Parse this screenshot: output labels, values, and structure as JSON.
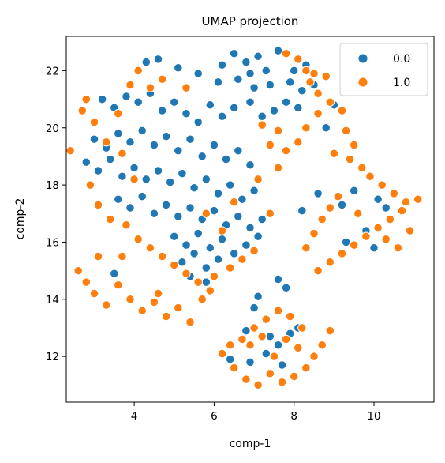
{
  "chart_data": {
    "type": "scatter",
    "title": "UMAP projection",
    "xlabel": "comp-1",
    "ylabel": "comp-2",
    "xlim": [
      2.3,
      11.5
    ],
    "ylim": [
      10.4,
      23.2
    ],
    "xticks": [
      4,
      6,
      8,
      10
    ],
    "yticks": [
      12,
      14,
      16,
      18,
      20,
      22
    ],
    "grid": false,
    "legend_position": "top-right",
    "series": [
      {
        "name": "0.0",
        "color": "#1f77b4",
        "points": [
          [
            4.3,
            22.3
          ],
          [
            4.6,
            22.4
          ],
          [
            5.1,
            22.1
          ],
          [
            5.6,
            21.9
          ],
          [
            6.5,
            22.6
          ],
          [
            6.8,
            22.3
          ],
          [
            7.1,
            22.5
          ],
          [
            7.6,
            22.7
          ],
          [
            6.2,
            22.2
          ],
          [
            6.9,
            21.9
          ],
          [
            7.3,
            22.0
          ],
          [
            8.0,
            22.0
          ],
          [
            8.3,
            22.2
          ],
          [
            6.1,
            21.6
          ],
          [
            6.6,
            21.7
          ],
          [
            7.0,
            21.4
          ],
          [
            7.4,
            21.5
          ],
          [
            7.9,
            21.6
          ],
          [
            8.2,
            21.3
          ],
          [
            8.5,
            21.5
          ],
          [
            3.2,
            21.0
          ],
          [
            3.5,
            20.7
          ],
          [
            3.8,
            21.1
          ],
          [
            4.1,
            20.9
          ],
          [
            4.4,
            21.2
          ],
          [
            4.7,
            20.6
          ],
          [
            5.0,
            20.9
          ],
          [
            5.3,
            20.5
          ],
          [
            5.6,
            20.2
          ],
          [
            5.9,
            20.8
          ],
          [
            6.2,
            20.4
          ],
          [
            6.5,
            20.7
          ],
          [
            6.9,
            20.9
          ],
          [
            7.2,
            20.4
          ],
          [
            7.5,
            20.6
          ],
          [
            7.8,
            20.9
          ],
          [
            8.1,
            20.7
          ],
          [
            3.0,
            19.6
          ],
          [
            3.3,
            19.3
          ],
          [
            3.6,
            19.8
          ],
          [
            3.9,
            19.5
          ],
          [
            4.2,
            19.9
          ],
          [
            4.5,
            19.4
          ],
          [
            4.8,
            19.7
          ],
          [
            5.1,
            19.2
          ],
          [
            5.4,
            19.6
          ],
          [
            5.7,
            19.0
          ],
          [
            6.0,
            19.4
          ],
          [
            6.3,
            18.9
          ],
          [
            6.6,
            19.2
          ],
          [
            6.9,
            18.7
          ],
          [
            2.8,
            18.8
          ],
          [
            3.1,
            18.5
          ],
          [
            3.4,
            18.9
          ],
          [
            3.7,
            18.3
          ],
          [
            4.0,
            18.6
          ],
          [
            4.3,
            18.2
          ],
          [
            4.6,
            18.5
          ],
          [
            4.9,
            18.1
          ],
          [
            5.2,
            18.4
          ],
          [
            5.5,
            17.9
          ],
          [
            5.8,
            18.2
          ],
          [
            6.1,
            17.7
          ],
          [
            6.4,
            18.0
          ],
          [
            6.7,
            17.5
          ],
          [
            7.0,
            17.8
          ],
          [
            3.6,
            17.5
          ],
          [
            3.9,
            17.2
          ],
          [
            4.2,
            17.6
          ],
          [
            4.5,
            17.0
          ],
          [
            4.8,
            17.3
          ],
          [
            5.1,
            16.9
          ],
          [
            5.4,
            17.2
          ],
          [
            5.7,
            16.8
          ],
          [
            6.0,
            17.1
          ],
          [
            6.3,
            16.6
          ],
          [
            6.6,
            16.9
          ],
          [
            6.9,
            16.5
          ],
          [
            7.2,
            16.8
          ],
          [
            5.0,
            16.2
          ],
          [
            5.3,
            15.9
          ],
          [
            5.6,
            16.3
          ],
          [
            5.9,
            15.8
          ],
          [
            6.2,
            16.1
          ],
          [
            6.5,
            15.6
          ],
          [
            6.8,
            15.9
          ],
          [
            7.1,
            16.2
          ],
          [
            5.2,
            15.3
          ],
          [
            5.5,
            15.6
          ],
          [
            5.8,
            15.1
          ],
          [
            6.1,
            15.4
          ],
          [
            5.4,
            14.8
          ],
          [
            5.8,
            14.6
          ],
          [
            3.5,
            14.9
          ],
          [
            7.0,
            13.7
          ],
          [
            7.8,
            14.4
          ],
          [
            7.6,
            14.7
          ],
          [
            7.1,
            14.1
          ],
          [
            8.6,
            17.7
          ],
          [
            8.2,
            17.1
          ],
          [
            9.2,
            17.3
          ],
          [
            9.5,
            17.8
          ],
          [
            10.1,
            17.5
          ],
          [
            10.3,
            17.2
          ],
          [
            9.8,
            16.4
          ],
          [
            9.3,
            16.0
          ],
          [
            10.0,
            15.8
          ],
          [
            9.0,
            20.8
          ],
          [
            8.8,
            20.0
          ],
          [
            6.4,
            11.9
          ],
          [
            6.9,
            11.8
          ],
          [
            7.3,
            12.1
          ],
          [
            7.6,
            12.4
          ],
          [
            7.9,
            12.8
          ],
          [
            8.1,
            13.0
          ],
          [
            7.4,
            12.7
          ],
          [
            6.8,
            12.9
          ],
          [
            7.7,
            11.7
          ]
        ]
      },
      {
        "name": "1.0",
        "color": "#ff7f0e",
        "points": [
          [
            7.8,
            22.6
          ],
          [
            8.1,
            22.4
          ],
          [
            8.3,
            22.0
          ],
          [
            8.5,
            21.9
          ],
          [
            8.8,
            21.8
          ],
          [
            8.4,
            21.6
          ],
          [
            8.6,
            21.2
          ],
          [
            8.9,
            20.9
          ],
          [
            9.2,
            20.6
          ],
          [
            8.6,
            20.5
          ],
          [
            8.3,
            20.0
          ],
          [
            8.1,
            19.5
          ],
          [
            7.8,
            19.2
          ],
          [
            7.4,
            19.4
          ],
          [
            7.2,
            20.1
          ],
          [
            7.6,
            19.9
          ],
          [
            9.3,
            19.9
          ],
          [
            9.5,
            19.4
          ],
          [
            9.0,
            19.1
          ],
          [
            9.4,
            18.9
          ],
          [
            9.7,
            18.6
          ],
          [
            9.9,
            18.3
          ],
          [
            10.2,
            18.0
          ],
          [
            10.5,
            17.7
          ],
          [
            10.8,
            17.4
          ],
          [
            11.1,
            17.5
          ],
          [
            10.7,
            17.1
          ],
          [
            10.4,
            16.8
          ],
          [
            10.1,
            16.5
          ],
          [
            9.8,
            16.2
          ],
          [
            9.5,
            15.9
          ],
          [
            9.2,
            15.6
          ],
          [
            8.9,
            15.3
          ],
          [
            8.6,
            15.0
          ],
          [
            8.3,
            15.8
          ],
          [
            8.5,
            16.3
          ],
          [
            8.7,
            16.8
          ],
          [
            8.9,
            17.2
          ],
          [
            9.1,
            17.6
          ],
          [
            9.6,
            17.0
          ],
          [
            10.3,
            16.1
          ],
          [
            10.6,
            15.8
          ],
          [
            10.9,
            16.4
          ],
          [
            2.4,
            19.2
          ],
          [
            2.7,
            20.6
          ],
          [
            3.0,
            20.2
          ],
          [
            2.8,
            21.0
          ],
          [
            3.3,
            19.5
          ],
          [
            3.6,
            20.5
          ],
          [
            3.9,
            21.5
          ],
          [
            4.1,
            22.0
          ],
          [
            4.4,
            21.4
          ],
          [
            4.7,
            21.7
          ],
          [
            5.3,
            21.4
          ],
          [
            3.7,
            19.1
          ],
          [
            4.0,
            18.2
          ],
          [
            2.9,
            18.0
          ],
          [
            3.1,
            17.3
          ],
          [
            3.4,
            16.8
          ],
          [
            3.8,
            16.6
          ],
          [
            4.1,
            16.1
          ],
          [
            4.4,
            15.8
          ],
          [
            4.7,
            15.5
          ],
          [
            5.0,
            15.2
          ],
          [
            5.3,
            14.9
          ],
          [
            5.6,
            14.6
          ],
          [
            5.9,
            14.3
          ],
          [
            2.6,
            15.0
          ],
          [
            2.8,
            14.6
          ],
          [
            3.0,
            14.2
          ],
          [
            3.3,
            13.8
          ],
          [
            3.6,
            14.5
          ],
          [
            3.9,
            14.0
          ],
          [
            4.2,
            13.6
          ],
          [
            4.5,
            13.9
          ],
          [
            4.8,
            13.4
          ],
          [
            5.1,
            13.7
          ],
          [
            5.4,
            13.2
          ],
          [
            5.7,
            14.0
          ],
          [
            6.0,
            14.8
          ],
          [
            6.4,
            15.1
          ],
          [
            6.7,
            15.4
          ],
          [
            7.0,
            15.7
          ],
          [
            6.2,
            16.4
          ],
          [
            5.8,
            17.0
          ],
          [
            6.5,
            17.4
          ],
          [
            7.1,
            18.2
          ],
          [
            7.6,
            18.6
          ],
          [
            7.4,
            17.0
          ],
          [
            3.1,
            15.5
          ],
          [
            3.7,
            15.5
          ],
          [
            4.6,
            14.2
          ],
          [
            6.2,
            12.1
          ],
          [
            6.5,
            11.6
          ],
          [
            6.8,
            11.2
          ],
          [
            7.1,
            11.0
          ],
          [
            7.4,
            11.4
          ],
          [
            7.7,
            11.1
          ],
          [
            8.0,
            11.3
          ],
          [
            8.3,
            11.6
          ],
          [
            8.5,
            12.0
          ],
          [
            8.7,
            12.4
          ],
          [
            8.9,
            12.9
          ],
          [
            8.2,
            13.0
          ],
          [
            7.9,
            13.4
          ],
          [
            7.6,
            13.6
          ],
          [
            7.3,
            13.3
          ],
          [
            7.0,
            13.0
          ],
          [
            6.7,
            12.6
          ],
          [
            6.4,
            12.4
          ],
          [
            6.9,
            12.4
          ],
          [
            7.2,
            12.7
          ],
          [
            7.5,
            12.0
          ],
          [
            7.8,
            12.6
          ],
          [
            8.1,
            12.3
          ]
        ]
      }
    ]
  }
}
